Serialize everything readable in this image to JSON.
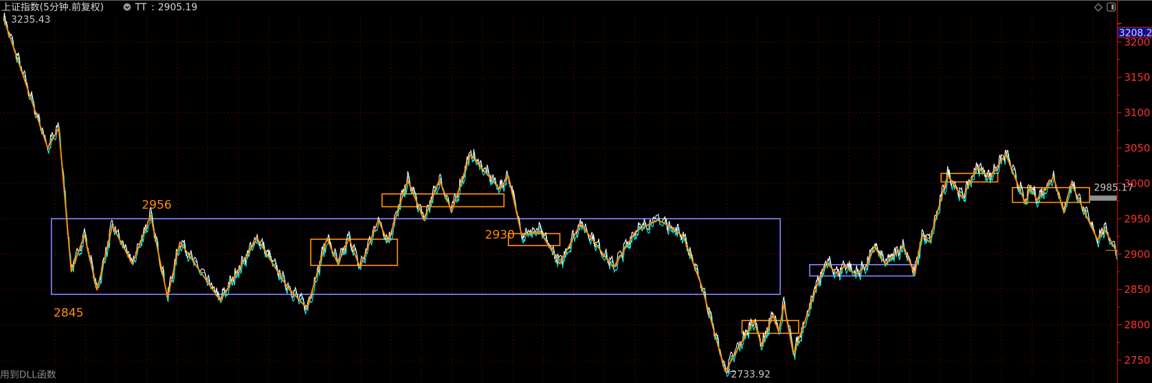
{
  "header": {
    "title": "上证指数(5分钟.前复权)",
    "indicator_name": "TT",
    "indicator_sep": ":",
    "indicator_value": "2905.19",
    "dropdown_icon": "circle-chevron-down-icon",
    "right_icons": [
      "diamond-icon",
      "panel-toggle-icon"
    ]
  },
  "footer": {
    "status_text": "用到DLL函数"
  },
  "colors": {
    "background": "#000000",
    "axis": "#e01010",
    "axis_labels": "#ff3030",
    "grid": "#8a0000",
    "zigzag": "#ff8c00",
    "price_line_up": "#ffffff",
    "price_line_down": "#00ffff",
    "big_box": "#8080ff",
    "current_price_bg": "#10108a"
  },
  "chart_data": {
    "type": "line",
    "title": "上证指数(5分钟.前复权)",
    "ylim": [
      2725,
      3240
    ],
    "yticks": [
      3200,
      3150,
      3100,
      3050,
      3000,
      2950,
      2900,
      2850,
      2800,
      2750
    ],
    "grid": true,
    "current_price_label": "3208.2",
    "x_unit": "bar",
    "zigzag": [
      [
        0,
        3233
      ],
      [
        60,
        3050
      ],
      [
        75,
        3078
      ],
      [
        92,
        2875
      ],
      [
        110,
        2927
      ],
      [
        127,
        2849
      ],
      [
        148,
        2940
      ],
      [
        175,
        2886
      ],
      [
        200,
        2955
      ],
      [
        223,
        2839
      ],
      [
        240,
        2917
      ],
      [
        295,
        2834
      ],
      [
        345,
        2922
      ],
      [
        385,
        2855
      ],
      [
        413,
        2823
      ],
      [
        440,
        2922
      ],
      [
        455,
        2886
      ],
      [
        470,
        2922
      ],
      [
        485,
        2881
      ],
      [
        510,
        2948
      ],
      [
        523,
        2917
      ],
      [
        550,
        3005
      ],
      [
        572,
        2948
      ],
      [
        593,
        3005
      ],
      [
        610,
        2960
      ],
      [
        635,
        3041
      ],
      [
        675,
        2992
      ],
      [
        687,
        3010
      ],
      [
        705,
        2927
      ],
      [
        730,
        2932
      ],
      [
        757,
        2886
      ],
      [
        785,
        2943
      ],
      [
        830,
        2881
      ],
      [
        860,
        2932
      ],
      [
        890,
        2948
      ],
      [
        900,
        2943
      ],
      [
        925,
        2925
      ],
      [
        950,
        2855
      ],
      [
        982,
        2733.92
      ],
      [
        1021,
        2806
      ],
      [
        1032,
        2770
      ],
      [
        1047,
        2814
      ],
      [
        1055,
        2790
      ],
      [
        1062,
        2829
      ],
      [
        1075,
        2758
      ],
      [
        1108,
        2858
      ],
      [
        1120,
        2888
      ],
      [
        1135,
        2871
      ],
      [
        1145,
        2884
      ],
      [
        1160,
        2871
      ],
      [
        1175,
        2884
      ],
      [
        1185,
        2911
      ],
      [
        1200,
        2886
      ],
      [
        1225,
        2911
      ],
      [
        1240,
        2871
      ],
      [
        1250,
        2927
      ],
      [
        1260,
        2917
      ],
      [
        1285,
        3012
      ],
      [
        1305,
        2979
      ],
      [
        1325,
        3023
      ],
      [
        1342,
        3008
      ],
      [
        1364,
        3041
      ],
      [
        1391,
        2971
      ],
      [
        1397,
        2994
      ],
      [
        1407,
        2976
      ],
      [
        1429,
        3009
      ],
      [
        1443,
        2959
      ],
      [
        1453,
        3000
      ],
      [
        1489,
        2920
      ],
      [
        1498,
        2936
      ],
      [
        1515,
        2903
      ]
    ],
    "boxes": [
      {
        "from_bar": 65,
        "to_bar": 1057,
        "high": 2950,
        "low": 2843,
        "color": "#8080ff"
      },
      {
        "from_bar": 418,
        "to_bar": 536,
        "high": 2921,
        "low": 2884,
        "color": "#ff8c00"
      },
      {
        "from_bar": 515,
        "to_bar": 681,
        "high": 2985,
        "low": 2967,
        "color": "#ff8c00"
      },
      {
        "from_bar": 687,
        "to_bar": 757,
        "high": 2929,
        "low": 2912,
        "color": "#ff8c00"
      },
      {
        "from_bar": 1005,
        "to_bar": 1082,
        "high": 2806,
        "low": 2788,
        "color": "#ff8c00"
      },
      {
        "from_bar": 1097,
        "to_bar": 1240,
        "high": 2885,
        "low": 2869,
        "color": "#8080ff"
      },
      {
        "from_bar": 1276,
        "to_bar": 1353,
        "high": 3014,
        "low": 3002,
        "color": "#ff8c00"
      },
      {
        "from_bar": 1373,
        "to_bar": 1478,
        "high": 2994,
        "low": 2973,
        "color": "#ff8c00"
      }
    ],
    "annotations": [
      {
        "text": "3235.43",
        "bar": 10,
        "price": 3235.43,
        "color": "#c8c8c8"
      },
      {
        "text": "2956",
        "bar": 188,
        "price": 2956,
        "color": "#ff8c00"
      },
      {
        "text": "2845",
        "bar": 68,
        "price": 2845,
        "color": "#ff8c00"
      },
      {
        "text": "2930",
        "bar": 655,
        "price": 2930,
        "color": "#ff8c00"
      },
      {
        "text": "2733.92",
        "bar": 985,
        "price": 2733.92,
        "color": "#c8c8c8"
      },
      {
        "text": "2985.17",
        "bar": 1482,
        "price": 2985.17,
        "color": "#c8c8c8"
      }
    ],
    "last_value": 2905.19
  }
}
